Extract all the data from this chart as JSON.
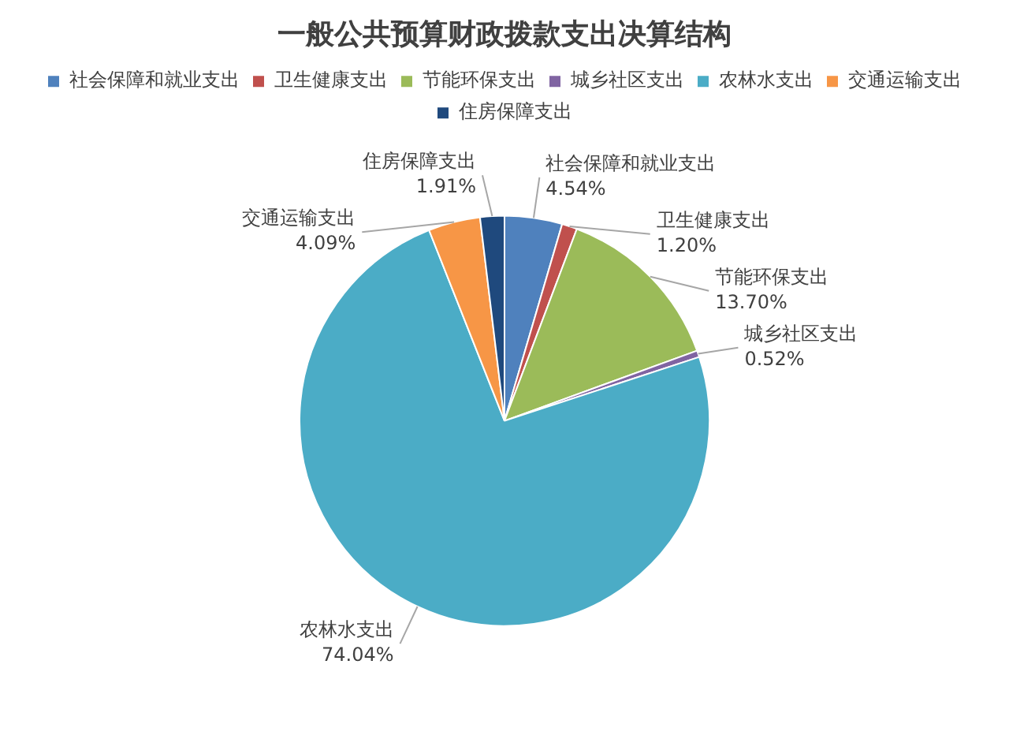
{
  "chart_data": {
    "type": "pie",
    "title": "一般公共预算财政拨款支出决算结构",
    "categories": [
      "社会保障和就业支出",
      "卫生健康支出",
      "节能环保支出",
      "城乡社区支出",
      "农林水支出",
      "交通运输支出",
      "住房保障支出"
    ],
    "values": [
      4.54,
      1.2,
      13.7,
      0.52,
      74.04,
      4.09,
      1.91
    ],
    "value_labels": [
      "4.54%",
      "1.20%",
      "13.70%",
      "0.52%",
      "74.04%",
      "4.09%",
      "1.91%"
    ],
    "colors": [
      "#4f81bd",
      "#c0504d",
      "#9bbb59",
      "#8064a2",
      "#4bacc6",
      "#f79646",
      "#1f497d"
    ],
    "legend": "top"
  }
}
